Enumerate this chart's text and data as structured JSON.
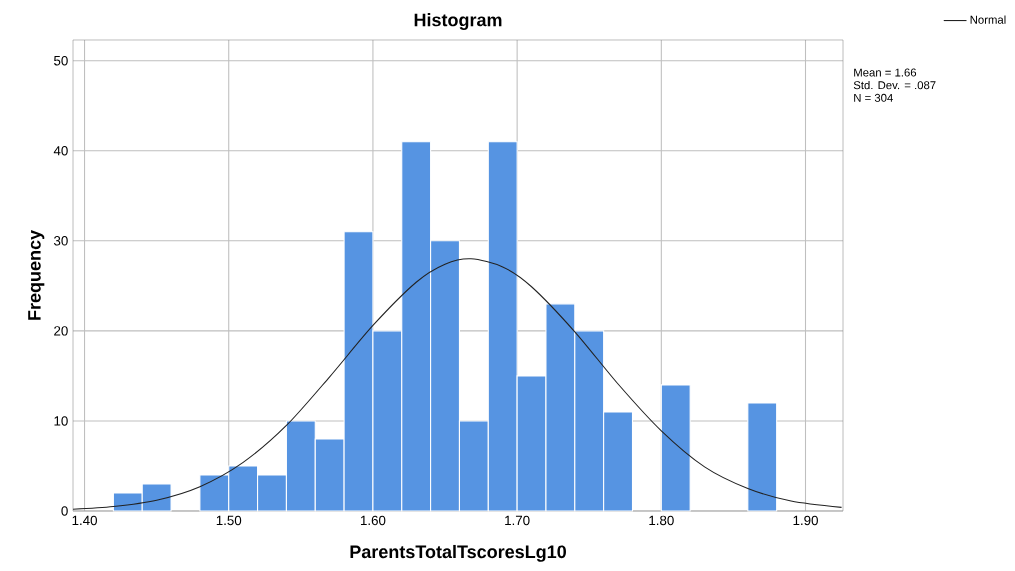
{
  "chart_data": {
    "type": "histogram",
    "title": "Histogram",
    "xlabel": "ParentsTotalTscoresLg10",
    "ylabel": "Frequency",
    "bins": [
      1.42,
      1.44,
      1.46,
      1.48,
      1.5,
      1.52,
      1.54,
      1.56,
      1.58,
      1.6,
      1.62,
      1.64,
      1.66,
      1.68,
      1.7,
      1.72,
      1.74,
      1.76,
      1.78,
      1.8,
      1.82,
      1.84,
      1.86,
      1.88
    ],
    "values": [
      2,
      3,
      0,
      4,
      5,
      4,
      10,
      8,
      31,
      20,
      41,
      30,
      10,
      41,
      15,
      23,
      20,
      11,
      0,
      14,
      0,
      0,
      12
    ],
    "color": "#5694e2",
    "series": [
      {
        "name": "Normal",
        "type": "line",
        "color": "#222222",
        "x": [
          1.392,
          1.42,
          1.45,
          1.48,
          1.51,
          1.54,
          1.57,
          1.6,
          1.63,
          1.65,
          1.668,
          1.69,
          1.71,
          1.74,
          1.77,
          1.8,
          1.83,
          1.86,
          1.89,
          1.925
        ],
        "values": [
          0.2,
          0.5,
          1.2,
          2.7,
          5.4,
          9.5,
          14.9,
          20.6,
          25.4,
          27.4,
          28.0,
          27.1,
          24.9,
          19.9,
          14.1,
          8.9,
          4.9,
          2.5,
          1.1,
          0.4
        ]
      }
    ],
    "xlim": [
      1.392,
      1.926
    ],
    "ylim": [
      0,
      52.3
    ],
    "xticks": [
      {
        "value": 1.4,
        "label": "1.40"
      },
      {
        "value": 1.5,
        "label": "1.50"
      },
      {
        "value": 1.6,
        "label": "1.60"
      },
      {
        "value": 1.7,
        "label": "1.70"
      },
      {
        "value": 1.8,
        "label": "1.80"
      },
      {
        "value": 1.9,
        "label": "1.90"
      }
    ],
    "yticks": [
      0,
      10,
      20,
      30,
      40,
      50
    ],
    "grid": true,
    "legend": "top right",
    "marker": "none",
    "line_style": "solid",
    "annotations": [
      "Mean = 1.66",
      "Std. Dev. = .087",
      "N = 304"
    ]
  }
}
